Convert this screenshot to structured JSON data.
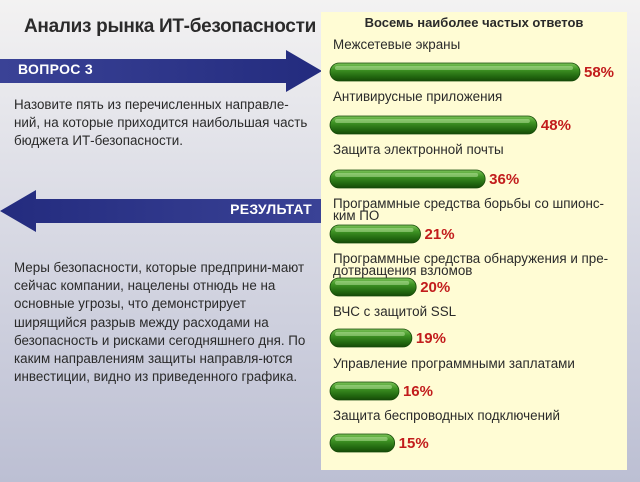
{
  "header": {
    "title": "Анализ рынка ИТ-безопасности"
  },
  "question": {
    "label": "ВОПРОС 3",
    "text": "Назовите пять из перечисленных направле-ний, на которые приходится наибольшая часть бюджета ИТ-безопасности."
  },
  "result": {
    "label": "РЕЗУЛЬТАТ",
    "text": "Меры безопасности, которые предприни-мают сейчас компании, нацелены отнюдь не на основные угрозы, что демонстрирует ширящийся разрыв между расходами на безопасность и рисками сегодняшнего дня. По каким направлениям защиты направля-ются инвестиции, видно из приведенного графика."
  },
  "colors": {
    "arrow": "#272f85",
    "bar": "#2f7d1a",
    "value": "#c21c1c",
    "panel": "#fffcd4"
  },
  "chart_data": {
    "type": "bar",
    "orientation": "horizontal",
    "title": "Восемь наиболее частых ответов",
    "categories": [
      "Межсетевые экраны",
      "Антивирусные приложения",
      "Защита электронной почты",
      "Программные средства борьбы со шпионс-ким ПО",
      "Программные средства обнаружения и пре-дотвращения взломов",
      "ВЧС с защитой SSL",
      "Управление программными заплатами",
      "Защита беспроводных подключений"
    ],
    "values": [
      58,
      48,
      36,
      21,
      20,
      19,
      16,
      15
    ],
    "value_labels": [
      "58%",
      "48%",
      "36%",
      "21%",
      "20%",
      "19%",
      "16%",
      "15%"
    ],
    "unit": "%",
    "xlim": [
      0,
      58
    ]
  }
}
